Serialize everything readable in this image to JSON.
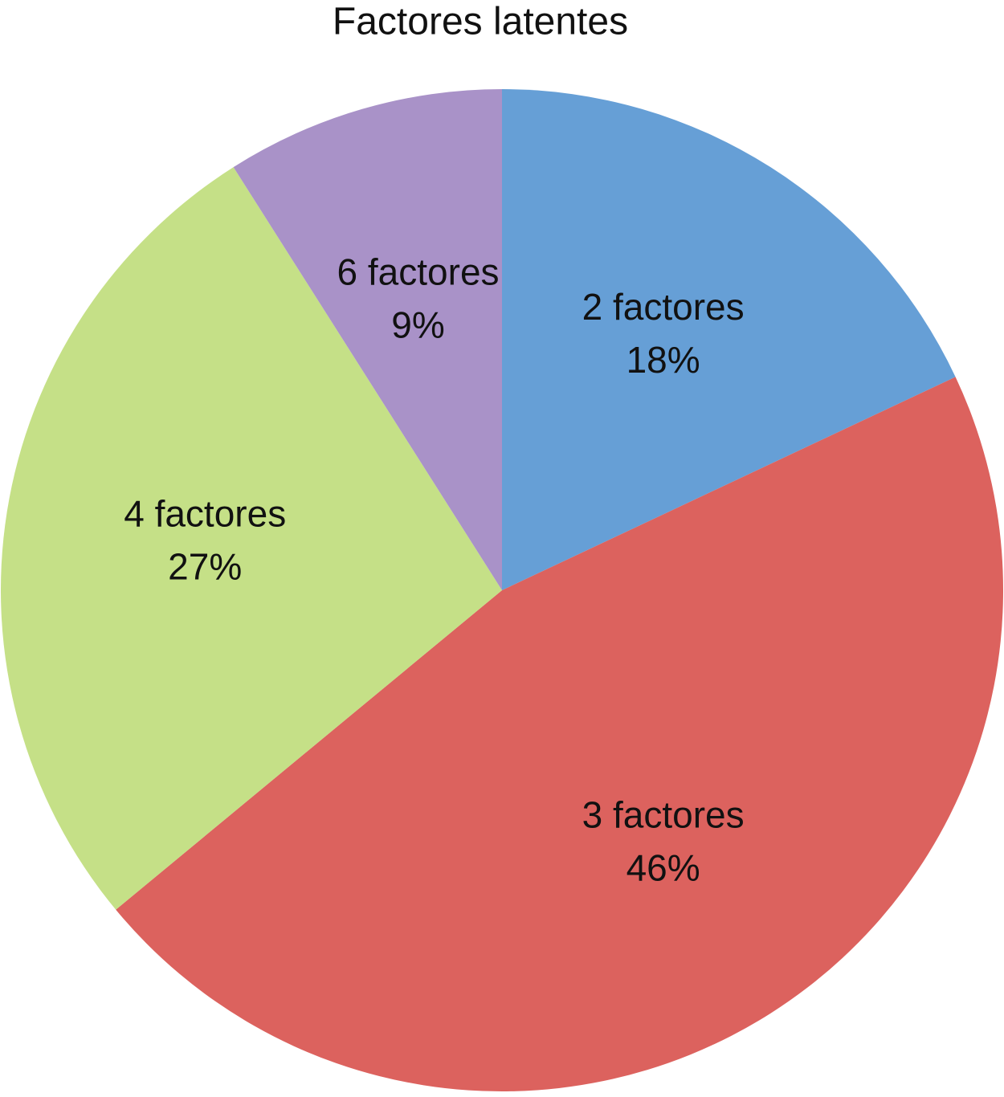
{
  "chart_data": {
    "type": "pie",
    "title": "Factores latentes",
    "categories": [
      "2 factores",
      "3 factores",
      "4 factores",
      "6 factores"
    ],
    "values": [
      18,
      46,
      27,
      9
    ],
    "value_labels": [
      "18%",
      "46%",
      "27%",
      "9%"
    ],
    "colors": [
      "#669fd6",
      "#dc625e",
      "#c5e087",
      "#a992c8"
    ]
  }
}
